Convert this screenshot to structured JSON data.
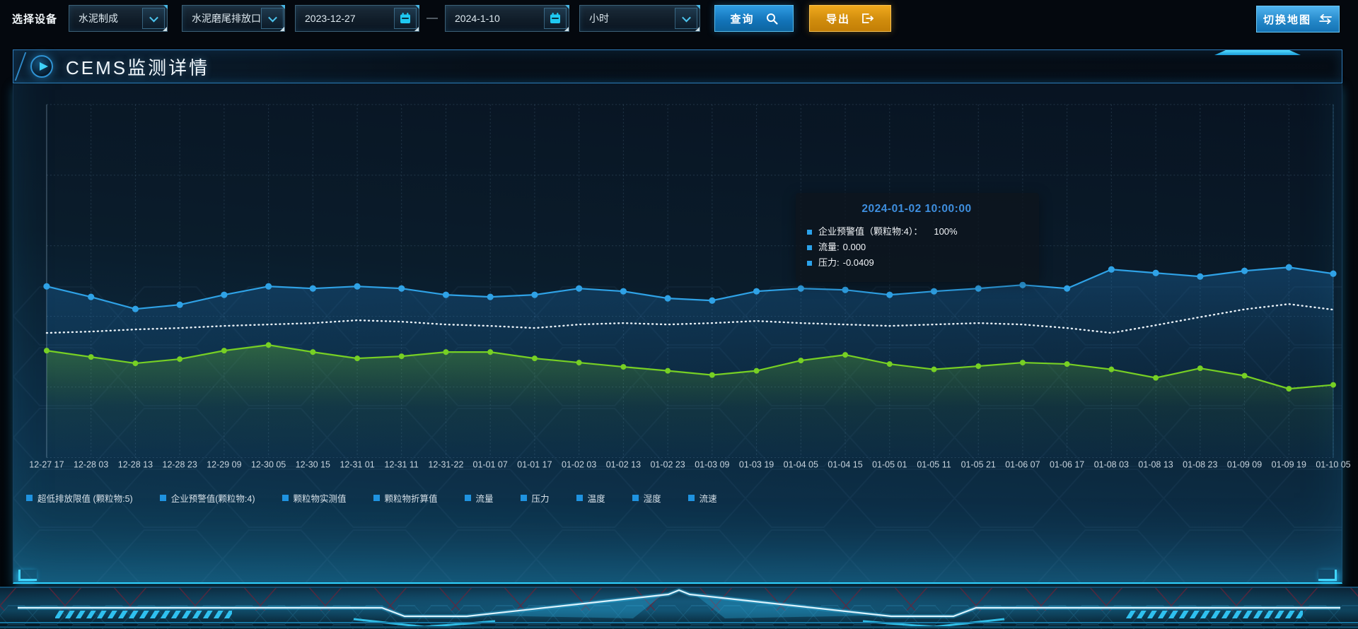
{
  "toolbar": {
    "device_label": "选择设备",
    "device_value": "水泥制成",
    "outlet_value": "水泥磨尾排放口",
    "start_date": "2023-12-27",
    "date_separator": "—",
    "end_date": "2024-1-10",
    "interval_value": "小时",
    "query_label": "查询",
    "export_label": "导出",
    "switch_map_label": "切换地图"
  },
  "panel": {
    "title": "CEMS监测详情"
  },
  "tooltip": {
    "title": "2024-01-02 10:00:00",
    "rows": [
      {
        "label": "企业预警值（颗粒物:4）：",
        "value": "100%"
      },
      {
        "label": "流量:",
        "value": "0.000"
      },
      {
        "label": "压力:",
        "value": "-0.0409"
      }
    ]
  },
  "chart_data": {
    "type": "line",
    "title": "CEMS监测详情",
    "y_axis": "no tick labels shown in source",
    "value_scale": "percent of plot height (0-100), estimated from pixels",
    "grid": "dashed",
    "legend_position": "bottom-left",
    "x_labels": [
      "12-27 17",
      "12-28 03",
      "12-28 13",
      "12-28 23",
      "12-29 09",
      "12-30 05",
      "12-30 15",
      "12-31 01",
      "12-31 11",
      "12-31-22",
      "01-01 07",
      "01-01 17",
      "01-02 03",
      "01-02 13",
      "01-02 23",
      "01-03 09",
      "01-03 19",
      "01-04 05",
      "01-04 15",
      "01-05 01",
      "01-05 11",
      "01-05 21",
      "01-06 07",
      "01-06 17",
      "01-08 03",
      "01-08 13",
      "01-08 23",
      "01-09 09",
      "01-09 19",
      "01-10 05"
    ],
    "legend": [
      "超低排放限值 (颗粒物:5)",
      "企业预警值(颗粒物:4)",
      "颗粒物实测值",
      "颗粒物折算值",
      "流量",
      "压力",
      "温度",
      "湿度",
      "流速"
    ],
    "series": [
      {
        "name": "流量",
        "color": "#2fa2e6",
        "line_style": "solid",
        "markers": true,
        "area": true,
        "values": [
          48.5,
          45.5,
          42.1,
          43.3,
          46.1,
          48.5,
          47.9,
          48.5,
          47.9,
          46.1,
          45.5,
          46.1,
          47.9,
          47.1,
          45.1,
          44.5,
          47.1,
          47.9,
          47.5,
          46.1,
          47.1,
          47.9,
          48.9,
          47.9,
          53.3,
          52.3,
          51.3,
          52.9,
          53.9,
          52.1
        ]
      },
      {
        "name": "企业预警值(颗粒物:4)",
        "color": "#e9f1f7",
        "line_style": "dotted",
        "markers": false,
        "area": false,
        "values": [
          35.3,
          35.7,
          36.3,
          36.7,
          37.3,
          37.7,
          38.1,
          38.9,
          38.5,
          37.7,
          37.3,
          36.7,
          37.7,
          38.1,
          37.7,
          38.1,
          38.7,
          38.1,
          37.7,
          37.3,
          37.7,
          38.1,
          37.7,
          36.7,
          35.3,
          37.5,
          39.8,
          42.0,
          43.5,
          41.9
        ]
      },
      {
        "name": "压力",
        "color": "#77d024",
        "line_style": "solid",
        "markers": true,
        "area": true,
        "values": [
          30.3,
          28.5,
          26.7,
          27.9,
          30.3,
          31.9,
          29.9,
          28.1,
          28.7,
          29.9,
          29.9,
          28.1,
          26.9,
          25.7,
          24.6,
          23.4,
          24.6,
          27.5,
          29.1,
          26.5,
          25.0,
          25.9,
          26.9,
          26.5,
          25.0,
          22.6,
          25.3,
          23.2,
          19.5,
          20.6
        ]
      }
    ]
  }
}
